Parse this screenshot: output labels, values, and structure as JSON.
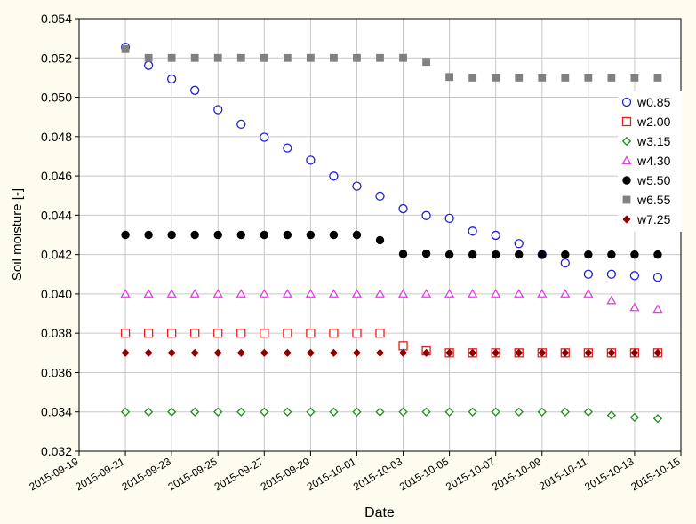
{
  "chart_data": {
    "type": "scatter",
    "xlabel": "Date",
    "ylabel": "Soil moisture [-]",
    "xlim": [
      "2015-09-19",
      "2015-10-15"
    ],
    "ylim": [
      0.032,
      0.054
    ],
    "yticks": [
      "0.032",
      "0.034",
      "0.036",
      "0.038",
      "0.040",
      "0.042",
      "0.044",
      "0.046",
      "0.048",
      "0.050",
      "0.052",
      "0.054"
    ],
    "xticks": [
      "2015-09-19",
      "2015-09-21",
      "2015-09-23",
      "2015-09-25",
      "2015-09-27",
      "2015-09-29",
      "2015-10-01",
      "2015-10-03",
      "2015-10-05",
      "2015-10-07",
      "2015-10-09",
      "2015-10-11",
      "2015-10-13",
      "2015-10-15"
    ],
    "grid": true,
    "legend_position": "right",
    "x": [
      "2015-09-21",
      "2015-09-22",
      "2015-09-23",
      "2015-09-24",
      "2015-09-25",
      "2015-09-26",
      "2015-09-27",
      "2015-09-28",
      "2015-09-29",
      "2015-09-30",
      "2015-10-01",
      "2015-10-02",
      "2015-10-03",
      "2015-10-04",
      "2015-10-05",
      "2015-10-06",
      "2015-10-07",
      "2015-10-08",
      "2015-10-09",
      "2015-10-10",
      "2015-10-11",
      "2015-10-12",
      "2015-10-13",
      "2015-10-14"
    ],
    "series": [
      {
        "name": "w0.85",
        "marker": "circle-open",
        "color": "#1f1fd8",
        "values": [
          0.05255,
          0.05162,
          0.05093,
          0.05035,
          0.04937,
          0.04863,
          0.04797,
          0.04742,
          0.0468,
          0.04599,
          0.04548,
          0.04497,
          0.04433,
          0.04398,
          0.04384,
          0.04319,
          0.04298,
          0.04256,
          0.042,
          0.04157,
          0.041,
          0.041,
          0.04093,
          0.04085
        ]
      },
      {
        "name": "w2.00",
        "marker": "square-open",
        "color": "#e02020",
        "values": [
          0.038,
          0.038,
          0.038,
          0.038,
          0.038,
          0.038,
          0.038,
          0.038,
          0.038,
          0.038,
          0.038,
          0.038,
          0.03736,
          0.0371,
          0.037,
          0.037,
          0.037,
          0.037,
          0.037,
          0.037,
          0.037,
          0.037,
          0.037,
          0.037
        ]
      },
      {
        "name": "w3.15",
        "marker": "diamond-open",
        "color": "#1a8a1a",
        "values": [
          0.034,
          0.034,
          0.034,
          0.034,
          0.034,
          0.034,
          0.034,
          0.034,
          0.034,
          0.034,
          0.034,
          0.034,
          0.034,
          0.034,
          0.034,
          0.034,
          0.034,
          0.034,
          0.034,
          0.034,
          0.034,
          0.03383,
          0.03372,
          0.03366
        ]
      },
      {
        "name": "w4.30",
        "marker": "triangle-open",
        "color": "#e040e0",
        "values": [
          0.04,
          0.04,
          0.04,
          0.04,
          0.04,
          0.04,
          0.04,
          0.04,
          0.04,
          0.04,
          0.04,
          0.04,
          0.04,
          0.04,
          0.04,
          0.04,
          0.04,
          0.04,
          0.04,
          0.04,
          0.04,
          0.03966,
          0.0393,
          0.03922
        ]
      },
      {
        "name": "w5.50",
        "marker": "circle-filled",
        "color": "#000000",
        "values": [
          0.043,
          0.043,
          0.043,
          0.043,
          0.043,
          0.043,
          0.043,
          0.043,
          0.043,
          0.043,
          0.043,
          0.04273,
          0.04203,
          0.04205,
          0.042,
          0.042,
          0.042,
          0.042,
          0.042,
          0.042,
          0.042,
          0.042,
          0.042,
          0.042
        ]
      },
      {
        "name": "w6.55",
        "marker": "square-filled",
        "color": "#808080",
        "values": [
          0.05245,
          0.052,
          0.052,
          0.052,
          0.052,
          0.052,
          0.052,
          0.052,
          0.052,
          0.052,
          0.052,
          0.052,
          0.052,
          0.0518,
          0.05103,
          0.051,
          0.051,
          0.051,
          0.051,
          0.051,
          0.051,
          0.051,
          0.051,
          0.051
        ]
      },
      {
        "name": "w7.25",
        "marker": "diamond-filled",
        "color": "#8b0000",
        "values": [
          0.037,
          0.037,
          0.037,
          0.037,
          0.037,
          0.037,
          0.037,
          0.037,
          0.037,
          0.037,
          0.037,
          0.037,
          0.037,
          0.037,
          0.037,
          0.037,
          0.037,
          0.037,
          0.037,
          0.037,
          0.037,
          0.037,
          0.037,
          0.037
        ]
      }
    ]
  }
}
